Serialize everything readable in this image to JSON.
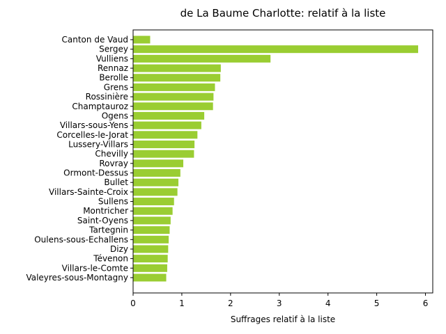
{
  "chart_data": {
    "type": "bar",
    "orientation": "horizontal",
    "title": "de La Baume Charlotte: relatif à la liste",
    "xlabel": "Suffrages relatif à la liste",
    "ylabel": "",
    "xlim": [
      0,
      6.15
    ],
    "xticks": [
      0,
      1,
      2,
      3,
      4,
      5,
      6
    ],
    "bar_color": "#9acd32",
    "grid": false,
    "categories": [
      "Canton de Vaud",
      "Sergey",
      "Vulliens",
      "Rennaz",
      "Berolle",
      "Grens",
      "Rossinière",
      "Champtauroz",
      "Ogens",
      "Villars-sous-Yens",
      "Corcelles-le-Jorat",
      "Lussery-Villars",
      "Chevilly",
      "Rovray",
      "Ormont-Dessus",
      "Bullet",
      "Villars-Sainte-Croix",
      "Sullens",
      "Montricher",
      "Saint-Oyens",
      "Tartegnin",
      "Oulens-sous-Echallens",
      "Dizy",
      "Tévenon",
      "Villars-le-Comte",
      "Valeyres-sous-Montagny"
    ],
    "values": [
      0.35,
      5.85,
      2.82,
      1.8,
      1.79,
      1.68,
      1.65,
      1.64,
      1.46,
      1.4,
      1.32,
      1.26,
      1.25,
      1.03,
      0.97,
      0.93,
      0.91,
      0.84,
      0.81,
      0.77,
      0.75,
      0.73,
      0.72,
      0.71,
      0.7,
      0.68
    ]
  }
}
